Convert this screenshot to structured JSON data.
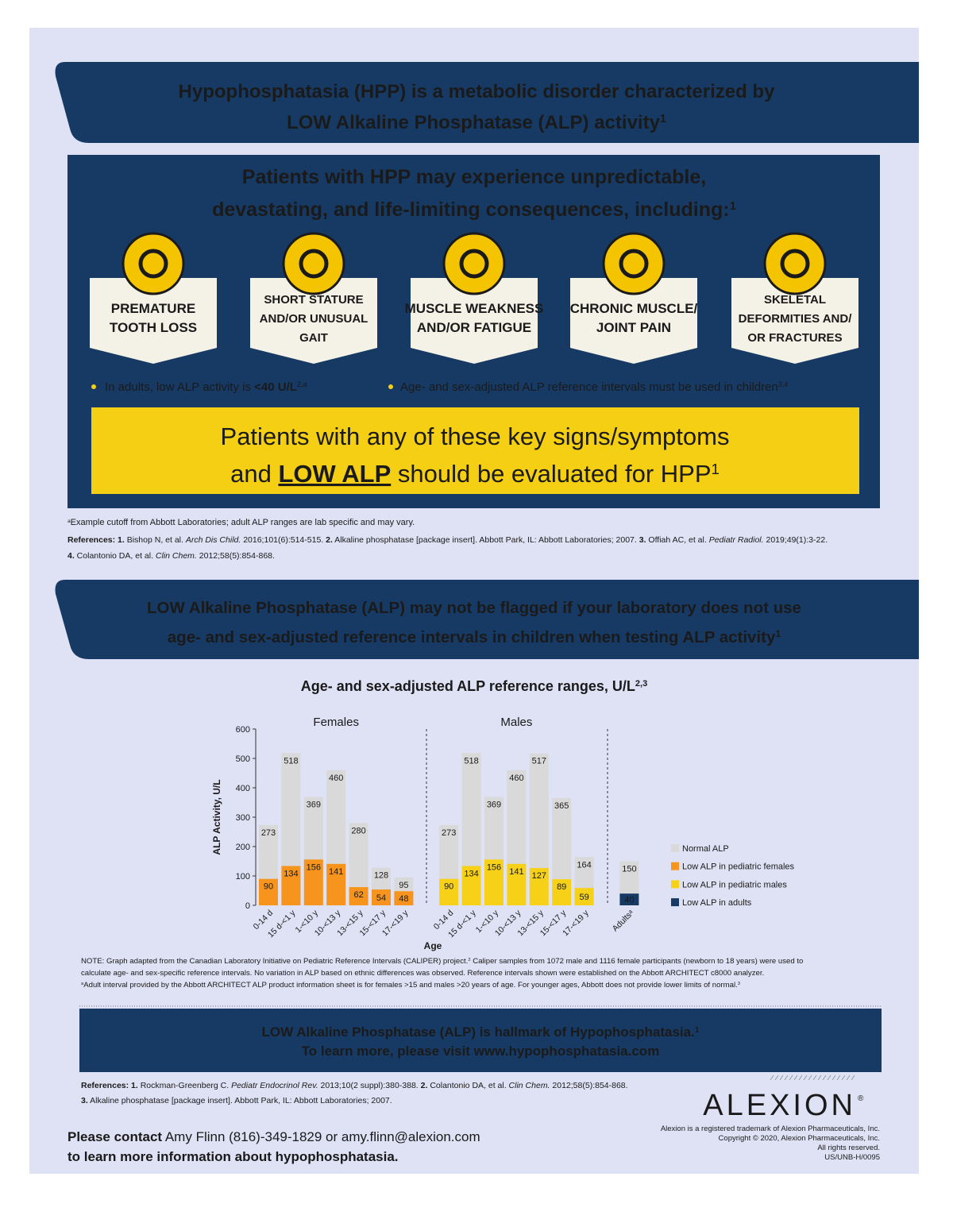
{
  "header": {
    "lines": [
      [
        {
          "text": "Hypophosphatasia (HPP) is a metabolic disorder characterized by"
        }
      ],
      [
        {
          "text": "LOW Alkaline Phosphatase (ALP) activity"
        },
        {
          "text": "1",
          "style": "sup"
        }
      ]
    ]
  },
  "consequences": {
    "heading": [
      [
        {
          "text": "Patients with HPP may experience unpredictable,"
        }
      ],
      [
        {
          "text": "devastating, and life-limiting consequences, including:"
        },
        {
          "text": "1",
          "style": "sup"
        }
      ]
    ],
    "items": [
      {
        "lines": [
          "PREMATURE",
          "TOOTH LOSS"
        ]
      },
      {
        "lines": [
          "SHORT STATURE",
          "AND/OR UNUSUAL",
          "GAIT"
        ]
      },
      {
        "lines": [
          "MUSCLE WEAKNESS",
          "AND/OR FATIGUE"
        ]
      },
      {
        "lines": [
          "CHRONIC MUSCLE/",
          "JOINT PAIN"
        ]
      },
      {
        "lines": [
          "SKELETAL",
          "DEFORMITIES AND/",
          "OR FRACTURES"
        ]
      }
    ],
    "bullets": [
      [
        {
          "text": "In adults, low ALP activity is "
        },
        {
          "text": "<40 U/L",
          "style": "b"
        },
        {
          "text": "2,a",
          "style": "sup"
        }
      ],
      [
        {
          "text": "Age- and sex-adjusted ALP reference intervals must be used in children"
        },
        {
          "text": "3,4",
          "style": "sup"
        }
      ]
    ]
  },
  "callout": {
    "lines": [
      [
        {
          "text": "Patients with any of these key signs/symptoms"
        }
      ],
      [
        {
          "text": "and "
        },
        {
          "text": "LOW ALP",
          "style": "b u"
        },
        {
          "text": " should be evaluated for HPP"
        },
        {
          "text": "1",
          "style": "sup"
        }
      ]
    ]
  },
  "footnote": [
    {
      "text": "a",
      "style": "sup"
    },
    {
      "text": "Example cutoff from Abbott Laboratories; adult ALP ranges are lab specific and may vary."
    }
  ],
  "references": {
    "lines": [
      [
        {
          "text": "References: 1.",
          "style": "b"
        },
        {
          "text": " Bishop N, et al. "
        },
        {
          "text": "Arch Dis Child.",
          "style": "i"
        },
        {
          "text": " 2016;101(6):514-515. "
        },
        {
          "text": "2.",
          "style": "b"
        },
        {
          "text": " Alkaline phosphatase [package insert]. Abbott Park, IL: Abbott Laboratories; 2007. "
        },
        {
          "text": "3.",
          "style": "b"
        },
        {
          "text": " Offiah AC, et al. "
        },
        {
          "text": "Pediatr Radiol.",
          "style": "i"
        },
        {
          "text": " 2019;49(1):3-22."
        }
      ],
      [
        {
          "text": "4.",
          "style": "b"
        },
        {
          "text": " Colantonio DA, et al. "
        },
        {
          "text": "Clin Chem.",
          "style": "i"
        },
        {
          "text": " 2012;58(5):854-868."
        }
      ]
    ]
  },
  "section2": {
    "lines": [
      [
        {
          "text": "LOW Alkaline Phosphatase (ALP) may not be flagged if your laboratory does not use"
        }
      ],
      [
        {
          "text": "age- and sex-adjusted reference intervals in children when testing ALP activity"
        },
        {
          "text": "1",
          "style": "sup"
        }
      ]
    ]
  },
  "chart_data": {
    "type": "bar",
    "title": "Age- and sex-adjusted ALP reference ranges, U/L",
    "title_sup": "2,3",
    "y_label": "ALP Activity, U/L",
    "x_label": "Age",
    "groups": [
      {
        "name": "Females",
        "categories": [
          "0-14 d",
          "15 d-<1 y",
          "1-<10 y",
          "10-<13 y",
          "13-<15 y",
          "15-<17 y",
          "17-<19 y"
        ]
      },
      {
        "name": "Males",
        "categories": [
          "0-14 d",
          "15 d-<1 y",
          "1-<10 y",
          "10-<13 y",
          "13-<15 y",
          "15-<17 y",
          "17-<19 y"
        ]
      },
      {
        "categories": [
          "Adultsᵃ"
        ]
      }
    ],
    "series": [
      {
        "name": "Normal ALP",
        "color": "#d9d9d9",
        "values": [
          273,
          518,
          369,
          460,
          280,
          128,
          95,
          273,
          518,
          369,
          460,
          517,
          365,
          164,
          150
        ]
      },
      {
        "name": "Low ALP in pediatric females",
        "color": "#f7941d",
        "values": [
          90,
          134,
          156,
          141,
          62,
          54,
          48,
          null,
          null,
          null,
          null,
          null,
          null,
          null,
          null
        ]
      },
      {
        "name": "Low ALP in pediatric males",
        "color": "#f7d117",
        "values": [
          null,
          null,
          null,
          null,
          null,
          null,
          null,
          90,
          134,
          156,
          141,
          127,
          89,
          59,
          null
        ]
      },
      {
        "name": "Low ALP in adults",
        "color": "#173a64",
        "values": [
          null,
          null,
          null,
          null,
          null,
          null,
          null,
          null,
          null,
          null,
          null,
          null,
          null,
          null,
          40
        ]
      }
    ],
    "ylim": [
      0,
      600
    ],
    "yticks": [
      0,
      100,
      200,
      300,
      400,
      500,
      600
    ],
    "grid": false,
    "legend": "right"
  },
  "note": {
    "lines": [
      [
        {
          "text": "NOTE: Graph adapted from the Canadian Laboratory Initiative on Pediatric Reference Intervals (CALIPER) project."
        },
        {
          "text": "2",
          "style": "sup"
        },
        {
          "text": " Caliper samples from 1072 male and 1116 female participants (newborn to 18 years) were used to"
        }
      ],
      [
        {
          "text": "calculate age- and sex-specific reference intervals. No variation in ALP based on ethnic differences was observed. Reference intervals shown were established on the Abbott ARCHITECT c8000 analyzer."
        }
      ],
      [
        {
          "text": "a",
          "style": "sup"
        },
        {
          "text": "Adult interval provided by the Abbott ARCHITECT ALP product information sheet is for females >15 and males >20 years of age. For younger ages, Abbott does not provide lower limits of normal."
        },
        {
          "text": "3",
          "style": "sup"
        }
      ]
    ]
  },
  "banner": {
    "lines": [
      [
        {
          "text": "LOW Alkaline Phosphatase (ALP) is hallmark of Hypophosphatasia."
        },
        {
          "text": "1",
          "style": "sup"
        }
      ],
      [
        {
          "text": "To learn more, please visit www.hypophosphatasia.com"
        }
      ]
    ]
  },
  "references2": {
    "lines": [
      [
        {
          "text": "References: 1.",
          "style": "b"
        },
        {
          "text": " Rockman-Greenberg C. "
        },
        {
          "text": "Pediatr Endocrinol Rev.",
          "style": "i"
        },
        {
          "text": " 2013;10(2 suppl):380-388. "
        },
        {
          "text": "2.",
          "style": "b"
        },
        {
          "text": " Colantonio DA, et al. "
        },
        {
          "text": "Clin Chem.",
          "style": "i"
        },
        {
          "text": " 2012;58(5):854-868."
        }
      ],
      [
        {
          "text": "3.",
          "style": "b"
        },
        {
          "text": " Alkaline phosphatase [package insert]. Abbott Park, IL: Abbott Laboratories; 2007."
        }
      ]
    ]
  },
  "contact": {
    "lines": [
      [
        {
          "text": "Please contact",
          "style": "b"
        },
        {
          "text": " Amy Flinn (816)-349-1829 or amy.flinn@alexion.com"
        }
      ],
      [
        {
          "text": "to learn more information about hypophosphatasia.",
          "style": "b"
        }
      ]
    ]
  },
  "logo": {
    "name": "ALEXION",
    "mark": "®"
  },
  "legal": [
    "Alexion is a registered trademark of Alexion Pharmaceuticals, Inc.",
    "Copyright © 2020, Alexion Pharmaceuticals, Inc.",
    "All rights reserved.",
    "US/UNB-H/0095"
  ]
}
